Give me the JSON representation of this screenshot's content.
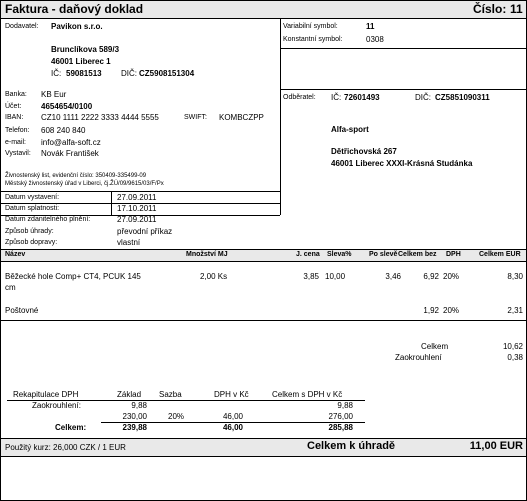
{
  "header": {
    "title": "Faktura - daňový doklad",
    "number_label": "Číslo:",
    "number_value": "11"
  },
  "supplier": {
    "label": "Dodavatel:",
    "name": "Pavikon s.r.o.",
    "street": "Brunclíkova 589/3",
    "city": "46001  Liberec 1",
    "ic_label": "IČ:",
    "ic_value": "59081513",
    "dic_label": "DIČ:",
    "dic_value": "CZ5908151304"
  },
  "symbols": {
    "variable_label": "Variabilní symbol:",
    "variable_value": "11",
    "constant_label": "Konstantní symbol:",
    "constant_value": "0308"
  },
  "bank": {
    "bank_label": "Banka:",
    "bank_value": "KB Eur",
    "account_label": "Účet:",
    "account_value": "4654654/0100",
    "iban_label": "IBAN:",
    "iban_value": "CZ10 1111 2222 3333 4444 5555",
    "swift_label": "SWIFT:",
    "swift_value": "KOMBCZPP",
    "phone_label": "Telefon:",
    "phone_value": "608 240 840",
    "email_label": "e-mail:",
    "email_value": "info@alfa-soft.cz",
    "issued_by_label": "Vystavil:",
    "issued_by_value": "Novák František",
    "license_line1": "Živnostenský list, evidenční číslo: 350409-335499-09",
    "license_line2": "Městský živnostenský úřad v Liberci, čj.ŽÚ/09/9615/03/F/Px"
  },
  "customer": {
    "label": "Odběratel:",
    "ic_label": "IČ:",
    "ic_value": "72601493",
    "dic_label": "DIČ:",
    "dic_value": "CZ5851090311",
    "name": "Alfa-sport",
    "street": "Dětřichovská 267",
    "city": "46001 Liberec XXXI-Krásná Studánka"
  },
  "dates": {
    "issued_label": "Datum vystavení:",
    "issued_value": "27.09.2011",
    "due_label": "Datum splatnosti:",
    "due_value": "17.10.2011",
    "tax_label": "Datum zdanitelného plnění:",
    "tax_value": "27.09.2011",
    "payment_label": "Způsob úhrady:",
    "payment_value": "převodní příkaz",
    "transport_label": "Způsob dopravy:",
    "transport_value": "vlastní"
  },
  "items_header": {
    "name": "Název",
    "qty": "Množství MJ",
    "unit_price": "J. cena",
    "discount": "Sleva%",
    "after_discount": "Po slevě",
    "total_excl": "Celkem bez",
    "vat": "DPH",
    "total_eur": "Celkem EUR"
  },
  "items": [
    {
      "name": "Běžecké hole Comp+ CT4, PCUK 145",
      "name2": "cm",
      "qty": "2,00 Ks",
      "unit_price": "3,85",
      "discount": "10,00",
      "after_discount": "3,46",
      "total_excl": "6,92",
      "vat": "20%",
      "total_eur": "8,30"
    },
    {
      "name": "Poštovné",
      "qty": "",
      "unit_price": "",
      "discount": "",
      "after_discount": "",
      "total_excl": "1,92",
      "vat": "20%",
      "total_eur": "2,31"
    }
  ],
  "totals": {
    "total_label": "Celkem",
    "total_value": "10,62",
    "rounding_label": "Zaokrouhlení",
    "rounding_value": "0,38"
  },
  "vat_recap": {
    "title": "Rekapitulace DPH",
    "col_base": "Základ",
    "col_rate": "Sazba",
    "col_vat": "DPH v Kč",
    "col_total": "Celkem s DPH v Kč",
    "rows": [
      {
        "label": "Zaokrouhlení:",
        "base": "9,88",
        "rate": "",
        "vat": "",
        "total": "9,88"
      },
      {
        "label": "",
        "base": "230,00",
        "rate": "20%",
        "vat": "46,00",
        "total": "276,00"
      },
      {
        "label": "Celkem:",
        "base": "239,88",
        "rate": "",
        "vat": "46,00",
        "total": "285,88"
      }
    ]
  },
  "footer": {
    "rate_text": "Použitý kurz: 26,000 CZK / 1 EUR",
    "due_label": "Celkem k úhradě",
    "due_value": "11,00 EUR"
  }
}
